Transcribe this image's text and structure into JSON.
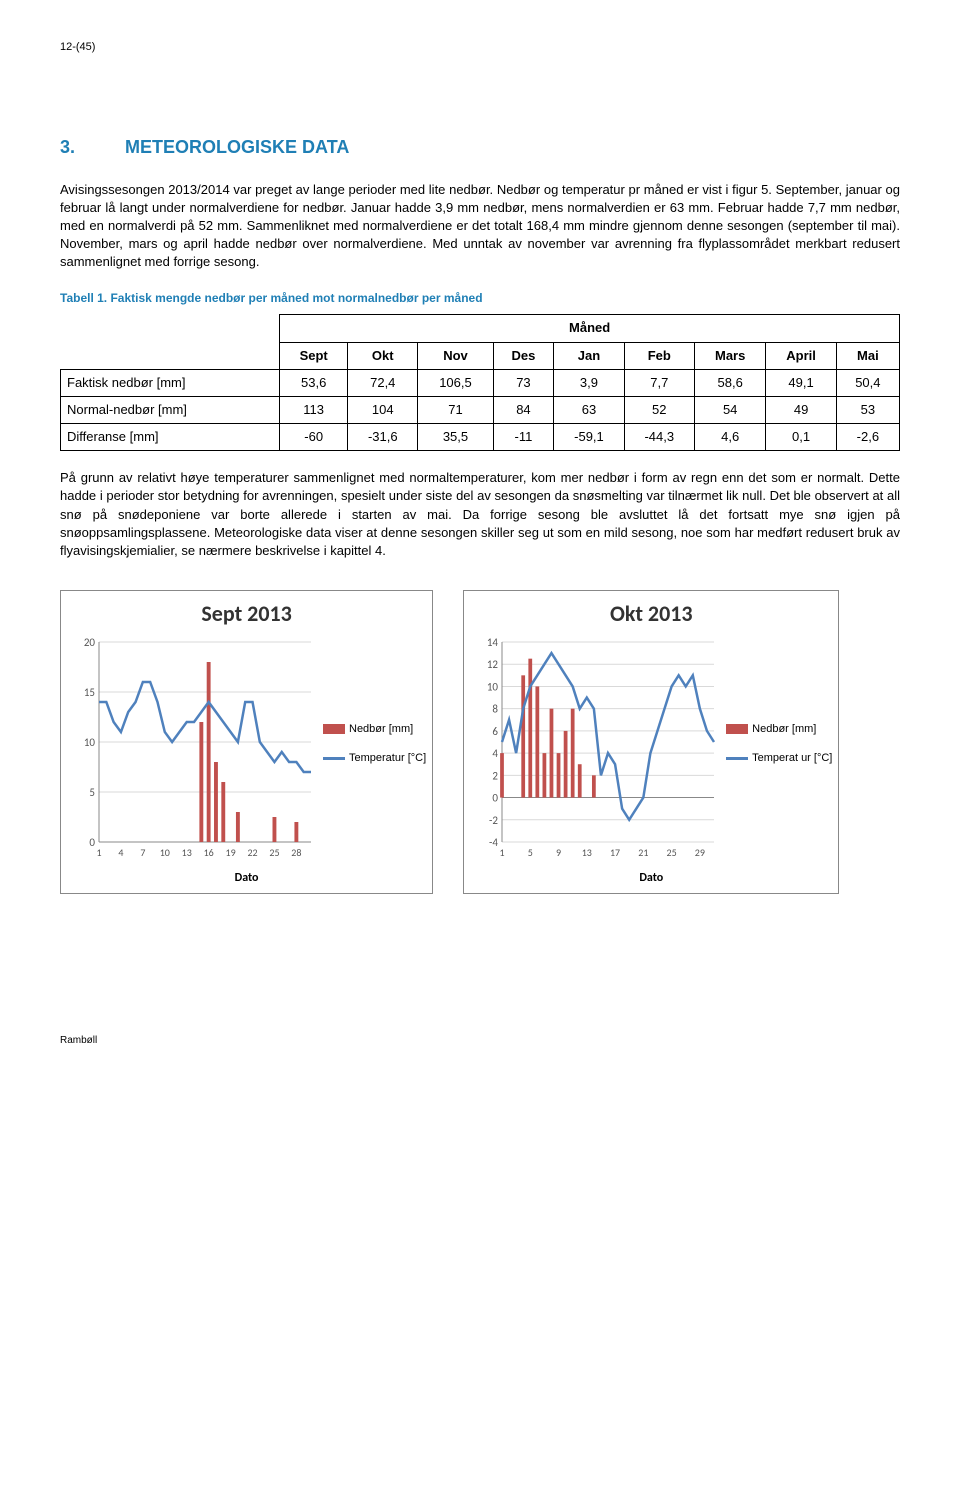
{
  "page_number": "12-(45)",
  "section_number": "3.",
  "section_title": "METEOROLOGISKE DATA",
  "para1": "Avisingssesongen 2013/2014 var preget av lange perioder med lite nedbør. Nedbør og temperatur pr måned er vist i figur 5. September, januar og februar lå langt under normalverdiene for nedbør. Januar hadde 3,9 mm nedbør, mens normalverdien er 63 mm. Februar hadde 7,7 mm nedbør, med en normalverdi på 52 mm. Sammenliknet med normalverdiene er det totalt 168,4 mm mindre gjennom denne sesongen (september til mai). November, mars og april hadde nedbør over normalverdiene. Med unntak av november var avrenning fra flyplassområdet merkbart redusert sammenlignet med forrige sesong.",
  "table_caption": "Tabell 1. Faktisk mengde nedbør per måned mot normalnedbør per måned",
  "table": {
    "group_header": "Måned",
    "columns": [
      "Sept",
      "Okt",
      "Nov",
      "Des",
      "Jan",
      "Feb",
      "Mars",
      "April",
      "Mai"
    ],
    "row_labels": [
      "Faktisk nedbør [mm]",
      "Normal-nedbør [mm]",
      "Differanse [mm]"
    ],
    "rows": [
      [
        "53,6",
        "72,4",
        "106,5",
        "73",
        "3,9",
        "7,7",
        "58,6",
        "49,1",
        "50,4"
      ],
      [
        "113",
        "104",
        "71",
        "84",
        "63",
        "52",
        "54",
        "49",
        "53"
      ],
      [
        "-60",
        "-31,6",
        "35,5",
        "-11",
        "-59,1",
        "-44,3",
        "4,6",
        "0,1",
        "-2,6"
      ]
    ]
  },
  "para2": "På grunn av relativt høye temperaturer sammenlignet med normaltemperaturer, kom mer nedbør i form av regn enn det som er normalt. Dette hadde i perioder stor betydning for avrenningen, spesielt under siste del av sesongen da snøsmelting var tilnærmet lik null. Det ble observert at all snø på snødeponiene var borte allerede i starten av mai. Da forrige sesong ble avsluttet lå det fortsatt mye snø igjen på snøoppsamlingsplassene. Meteorologiske data viser at denne sesongen skiller seg ut som en mild sesong, noe som har medført redusert bruk av flyavisingskjemialier, se nærmere beskrivelse i kapittel 4.",
  "chart_sept": {
    "title": "Sept 2013",
    "x_label": "Dato",
    "x_ticks": [
      1,
      4,
      7,
      10,
      13,
      16,
      19,
      22,
      25,
      28
    ],
    "y_min": 0,
    "y_max": 20,
    "y_step": 5,
    "legend_bar": "Nedbør [mm]",
    "legend_line": "Temperatur [°C]",
    "bar_color": "#c0504d",
    "line_color": "#4f81bd",
    "grid_color": "#d9d9d9",
    "days": 30,
    "precip": [
      0,
      0,
      0,
      0,
      0,
      0,
      0,
      0,
      0,
      0,
      0,
      0,
      0,
      0,
      12,
      18,
      8,
      6,
      0,
      3,
      0,
      0,
      0,
      0,
      2.5,
      0,
      0,
      2,
      0,
      0
    ],
    "temp": [
      14,
      14,
      12,
      11,
      13,
      14,
      16,
      16,
      14,
      11,
      10,
      11,
      12,
      12,
      13,
      14,
      13,
      12,
      11,
      10,
      14,
      14,
      10,
      9,
      8,
      9,
      8,
      8,
      7,
      7
    ]
  },
  "chart_okt": {
    "title": "Okt 2013",
    "x_label": "Dato",
    "x_ticks": [
      1,
      5,
      9,
      13,
      17,
      21,
      25,
      29
    ],
    "y_min": -4,
    "y_max": 14,
    "y_step": 2,
    "legend_bar": "Nedbør [mm]",
    "legend_line": "Temperat ur [°C]",
    "bar_color": "#c0504d",
    "line_color": "#4f81bd",
    "grid_color": "#d9d9d9",
    "days": 31,
    "precip": [
      4,
      0,
      0,
      11,
      12.5,
      10,
      4,
      8,
      4,
      6,
      8,
      3,
      0,
      2,
      0,
      0,
      0,
      0,
      0,
      0,
      0,
      0,
      0,
      0,
      0,
      0,
      0,
      0,
      0,
      0,
      0
    ],
    "temp": [
      5,
      7,
      4,
      8,
      10,
      11,
      12,
      13,
      12,
      11,
      10,
      8,
      9,
      8,
      2,
      4,
      3,
      -1,
      -2,
      -1,
      0,
      4,
      6,
      8,
      10,
      11,
      10,
      11,
      8,
      6,
      5
    ]
  },
  "footer": "Rambøll"
}
